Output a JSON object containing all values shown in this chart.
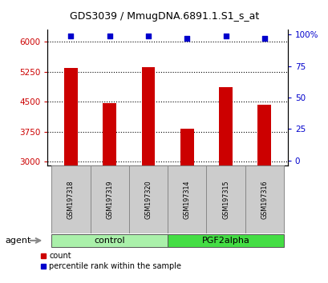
{
  "title": "GDS3039 / MmugDNA.6891.1.S1_s_at",
  "samples": [
    "GSM197318",
    "GSM197319",
    "GSM197320",
    "GSM197314",
    "GSM197315",
    "GSM197316"
  ],
  "counts": [
    5350,
    4470,
    5360,
    3820,
    4870,
    4430
  ],
  "percentiles": [
    99,
    99,
    99,
    97,
    99,
    97
  ],
  "group_labels": [
    "control",
    "PGF2alpha"
  ],
  "group_colors": [
    "#aaf0aa",
    "#44dd44"
  ],
  "ylim_left": [
    2900,
    6300
  ],
  "ylim_right": [
    -4,
    104
  ],
  "yticks_left": [
    3000,
    3750,
    4500,
    5250,
    6000
  ],
  "ytick_labels_left": [
    "3000",
    "3750",
    "4500",
    "5250",
    "6000"
  ],
  "yticks_right": [
    0,
    25,
    50,
    75,
    100
  ],
  "ytick_labels_right": [
    "0",
    "25",
    "50",
    "75",
    "100%"
  ],
  "bar_color": "#cc0000",
  "dot_color": "#0000cc",
  "bg_color": "#ffffff",
  "legend_count_label": "count",
  "legend_pct_label": "percentile rank within the sample"
}
